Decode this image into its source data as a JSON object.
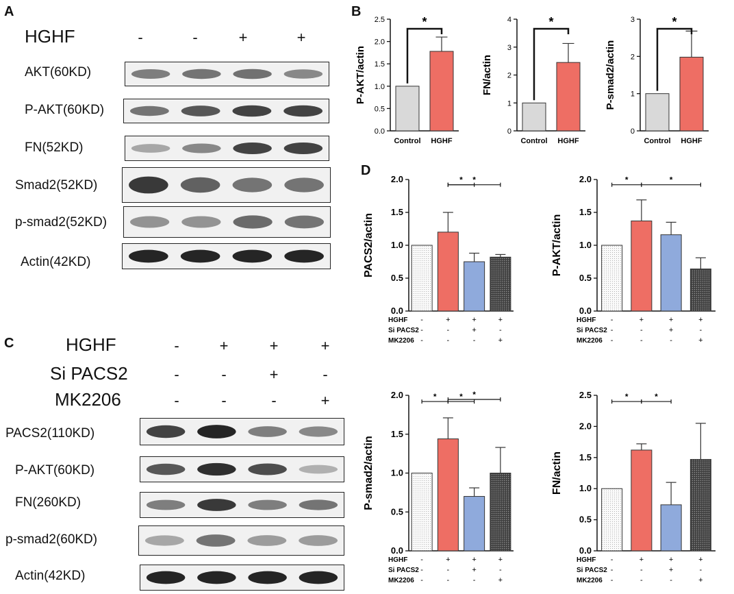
{
  "panels": {
    "A": "A",
    "B": "B",
    "C": "C",
    "D": "D"
  },
  "panel_a": {
    "condition": {
      "label": "HGHF",
      "signs": [
        "-",
        "-",
        "+",
        "+"
      ]
    },
    "blots": [
      {
        "label": "AKT(60KD)",
        "intensity": [
          0.55,
          0.6,
          0.62,
          0.5
        ]
      },
      {
        "label": "P-AKT(60KD)",
        "intensity": [
          0.6,
          0.75,
          0.85,
          0.85
        ]
      },
      {
        "label": "FN(52KD)",
        "intensity": [
          0.35,
          0.5,
          0.85,
          0.85
        ]
      },
      {
        "label": "Smad2(52KD)",
        "intensity": [
          0.9,
          0.7,
          0.6,
          0.6
        ]
      },
      {
        "label": "p-smad2(52KD)",
        "intensity": [
          0.45,
          0.45,
          0.65,
          0.6
        ]
      },
      {
        "label": "Actin(42KD)",
        "intensity": [
          1.0,
          1.0,
          1.0,
          1.0
        ]
      }
    ]
  },
  "panel_c": {
    "conditions": [
      {
        "label": "HGHF",
        "signs": [
          "-",
          "+",
          "+",
          "+"
        ]
      },
      {
        "label": "Si PACS2",
        "signs": [
          "-",
          "-",
          "+",
          "-"
        ]
      },
      {
        "label": "MK2206",
        "signs": [
          "-",
          "-",
          "-",
          "+"
        ]
      }
    ],
    "blots": [
      {
        "label": "PACS2(110KD)",
        "intensity": [
          0.85,
          1.0,
          0.55,
          0.5
        ]
      },
      {
        "label": "P-AKT(60KD)",
        "intensity": [
          0.75,
          0.95,
          0.8,
          0.3
        ]
      },
      {
        "label": "FN(260KD)",
        "intensity": [
          0.55,
          0.9,
          0.55,
          0.6
        ]
      },
      {
        "label": "p-smad2(60KD)",
        "intensity": [
          0.35,
          0.6,
          0.4,
          0.4
        ]
      },
      {
        "label": "Actin(42KD)",
        "intensity": [
          1.0,
          1.0,
          1.0,
          1.0
        ]
      }
    ]
  },
  "colors": {
    "control": "#d9d9d9",
    "hghf": "#ee6e64",
    "sipacs2": "#8faadc",
    "mk2206": "#404040",
    "axis": "#111111"
  },
  "chart_data": [
    {
      "type": "bar",
      "panel": "B",
      "ylabel": "P-AKT/actin",
      "categories": [
        "Control",
        "HGHF"
      ],
      "values": [
        1.0,
        1.78
      ],
      "errors": [
        0,
        0.32
      ],
      "ylim": [
        0,
        2.5
      ],
      "yticks": [
        "0.0",
        "0.5",
        "1.0",
        "1.5",
        "2.0",
        "2.5"
      ],
      "sig": [
        {
          "from": 0,
          "to": 1,
          "label": "*"
        }
      ]
    },
    {
      "type": "bar",
      "panel": "B",
      "ylabel": "FN/actin",
      "categories": [
        "Control",
        "HGHF"
      ],
      "values": [
        1.0,
        2.45
      ],
      "errors": [
        0,
        0.68
      ],
      "ylim": [
        0,
        4
      ],
      "yticks": [
        "0",
        "1",
        "2",
        "3",
        "4"
      ],
      "sig": [
        {
          "from": 0,
          "to": 1,
          "label": "*"
        }
      ]
    },
    {
      "type": "bar",
      "panel": "B",
      "ylabel": "P-smad2/actin",
      "categories": [
        "Control",
        "HGHF"
      ],
      "values": [
        1.0,
        1.98
      ],
      "errors": [
        0,
        0.7
      ],
      "ylim": [
        0,
        3
      ],
      "yticks": [
        "0",
        "1",
        "2",
        "3"
      ],
      "sig": [
        {
          "from": 0,
          "to": 1,
          "label": "*"
        }
      ]
    },
    {
      "type": "bar",
      "panel": "D",
      "ylabel": "PACS2/actin",
      "ylim": [
        0,
        2.0
      ],
      "yticks": [
        "0.0",
        "0.5",
        "1.0",
        "1.5",
        "2.0"
      ],
      "values": [
        1.0,
        1.2,
        0.75,
        0.82
      ],
      "errors": [
        0,
        0.3,
        0.13,
        0.04
      ],
      "sig": [
        {
          "from": 1,
          "to": 2,
          "label": "*"
        },
        {
          "from": 1,
          "to": 3,
          "label": "*"
        }
      ],
      "conditions": [
        {
          "label": "HGHF",
          "signs": [
            "-",
            "+",
            "+",
            "+"
          ]
        },
        {
          "label": "Si PACS2",
          "signs": [
            "-",
            "-",
            "+",
            "-"
          ]
        },
        {
          "label": "MK2206",
          "signs": [
            "-",
            "-",
            "-",
            "+"
          ]
        }
      ]
    },
    {
      "type": "bar",
      "panel": "D",
      "ylabel": "P-AKT/actin",
      "ylim": [
        0,
        2.0
      ],
      "yticks": [
        "0.0",
        "0.5",
        "1.0",
        "1.5",
        "2.0"
      ],
      "values": [
        1.0,
        1.37,
        1.16,
        0.64
      ],
      "errors": [
        0,
        0.32,
        0.19,
        0.17
      ],
      "sig": [
        {
          "from": 0,
          "to": 1,
          "label": "*"
        },
        {
          "from": 1,
          "to": 3,
          "label": "*"
        }
      ],
      "conditions": [
        {
          "label": "HGHF",
          "signs": [
            "-",
            "+",
            "+",
            "+"
          ]
        },
        {
          "label": "Si PACS2",
          "signs": [
            "-",
            "-",
            "+",
            "-"
          ]
        },
        {
          "label": "MK2206",
          "signs": [
            "-",
            "-",
            "-",
            "+"
          ]
        }
      ]
    },
    {
      "type": "bar",
      "panel": "D",
      "ylabel": "P-smad2/actin",
      "ylim": [
        0,
        2.0
      ],
      "yticks": [
        "0.0",
        "0.5",
        "1.0",
        "1.5",
        "2.0"
      ],
      "values": [
        1.0,
        1.44,
        0.7,
        1.0
      ],
      "errors": [
        0,
        0.27,
        0.11,
        0.33
      ],
      "sig": [
        {
          "from": 0,
          "to": 1,
          "label": "*"
        },
        {
          "from": 1,
          "to": 2,
          "label": "*"
        },
        {
          "from": 1,
          "to": 3,
          "label": "*"
        }
      ],
      "conditions": [
        {
          "label": "HGHF",
          "signs": [
            "-",
            "+",
            "+",
            "+"
          ]
        },
        {
          "label": "Si PACS2",
          "signs": [
            "-",
            "-",
            "+",
            "-"
          ]
        },
        {
          "label": "MK2206",
          "signs": [
            "-",
            "-",
            "-",
            "+"
          ]
        }
      ]
    },
    {
      "type": "bar",
      "panel": "D",
      "ylabel": "FN/actin",
      "ylim": [
        0,
        2.5
      ],
      "yticks": [
        "0.0",
        "0.5",
        "1.0",
        "1.5",
        "2.0",
        "2.5"
      ],
      "values": [
        1.0,
        1.62,
        0.74,
        1.47
      ],
      "errors": [
        0,
        0.1,
        0.36,
        0.58
      ],
      "sig": [
        {
          "from": 0,
          "to": 1,
          "label": "*"
        },
        {
          "from": 1,
          "to": 2,
          "label": "*"
        }
      ],
      "conditions": [
        {
          "label": "HGHF",
          "signs": [
            "-",
            "+",
            "+",
            "+"
          ]
        },
        {
          "label": "Si PACS2",
          "signs": [
            "-",
            "-",
            "+",
            "-"
          ]
        },
        {
          "label": "MK2206",
          "signs": [
            "-",
            "-",
            "-",
            "+"
          ]
        }
      ]
    }
  ]
}
